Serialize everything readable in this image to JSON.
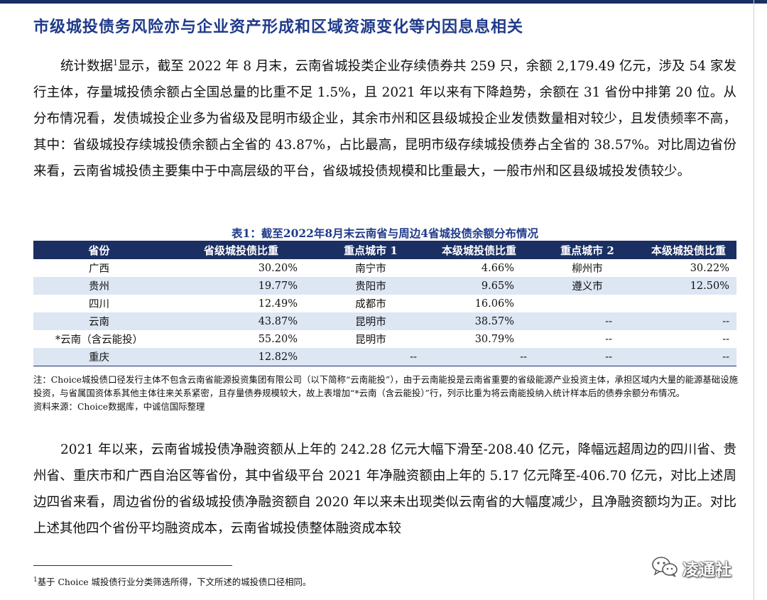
{
  "heading": "市级城投债务风险亦与企业资产形成和区域资源变化等内因息息相关",
  "paragraph1": {
    "before_sup": "统计数据",
    "sup": "1",
    "after_sup": "显示，截至 2022 年 8 月末，云南省城投类企业存续债券共 259 只，余额 2,179.49 亿元，涉及 54 家发行主体，存量城投债余额占全国总量的比重不足 1.5%，且 2021 年以来有下降趋势，余额在 31 省份中排第 20 位。从分布情况看，发债城投企业多为省级及昆明市级企业，其余市州和区县级城投企业发债数量相对较少，且发债频率不高，其中：省级城投存续城投债余额占全省的 43.87%，占比最高，昆明市级存续城投债券占全省的 38.57%。对比周边省份来看，云南省城投债主要集中于中高层级的平台，省级城投债规模和比重最大，一般市州和区县级城投发债较少。"
  },
  "table": {
    "title": "表1：截至2022年8月末云南省与周边4省城投债余额分布情况",
    "headers": [
      "省份",
      "省级城投债比重",
      "重点城市 1",
      "本级城投债比重",
      "重点城市 2",
      "本级城投债比重"
    ],
    "rows": [
      [
        "广西",
        "30.20%",
        "南宁市",
        "4.66%",
        "柳州市",
        "30.22%"
      ],
      [
        "贵州",
        "19.77%",
        "贵阳市",
        "9.65%",
        "遵义市",
        "12.50%"
      ],
      [
        "四川",
        "12.49%",
        "成都市",
        "16.06%",
        "",
        ""
      ],
      [
        "云南",
        "43.87%",
        "昆明市",
        "38.57%",
        "--",
        "--"
      ],
      [
        "*云南（含云能投）",
        "55.20%",
        "昆明市",
        "30.79%",
        "--",
        "--"
      ],
      [
        "重庆",
        "12.82%",
        "--",
        "--",
        "--",
        "--"
      ]
    ]
  },
  "note": "注：Choice城投债口径发行主体不包含云南省能源投资集团有限公司（以下简称“云南能投”），由于云南能投是云南省重要的省级能源产业投资主体，承担区域内大量的能源基础设施投资，与省属国资体系其他主体往来关系紧密，且存量债券规模较大，故上表增加“*云南（含云能投）”行，列示比重为将云南能投纳入统计样本后的债券余额分布情况。",
  "source": "资料来源：Choice数据库，中诚信国际整理",
  "paragraph2": "2021 年以来，云南省城投债净融资额从上年的 242.28 亿元大幅下滑至-208.40 亿元，降幅远超周边的四川省、贵州省、重庆市和广西自治区等省份，其中省级平台 2021 年净融资额由上年的 5.17 亿元降至-406.70 亿元，对比上述周边四省来看，周边省份的省级城投债净融资额自 2020 年以来未出现类似云南省的大幅度减少，且净融资额均为正。对比上述其他四个省份平均融资成本，云南省城投债整体融资成本较",
  "footnote": {
    "sup": "1",
    "text": "基于 Choice 城投债行业分类筛选所得，下文所述的城投债口径相同。"
  },
  "watermark": {
    "icon": "wechat-icon",
    "text": "凌通社"
  },
  "colors": {
    "heading": "#1f3a8a",
    "table_header_bg": "#1b2f63",
    "table_alt_row_bg": "#dde6f3"
  }
}
